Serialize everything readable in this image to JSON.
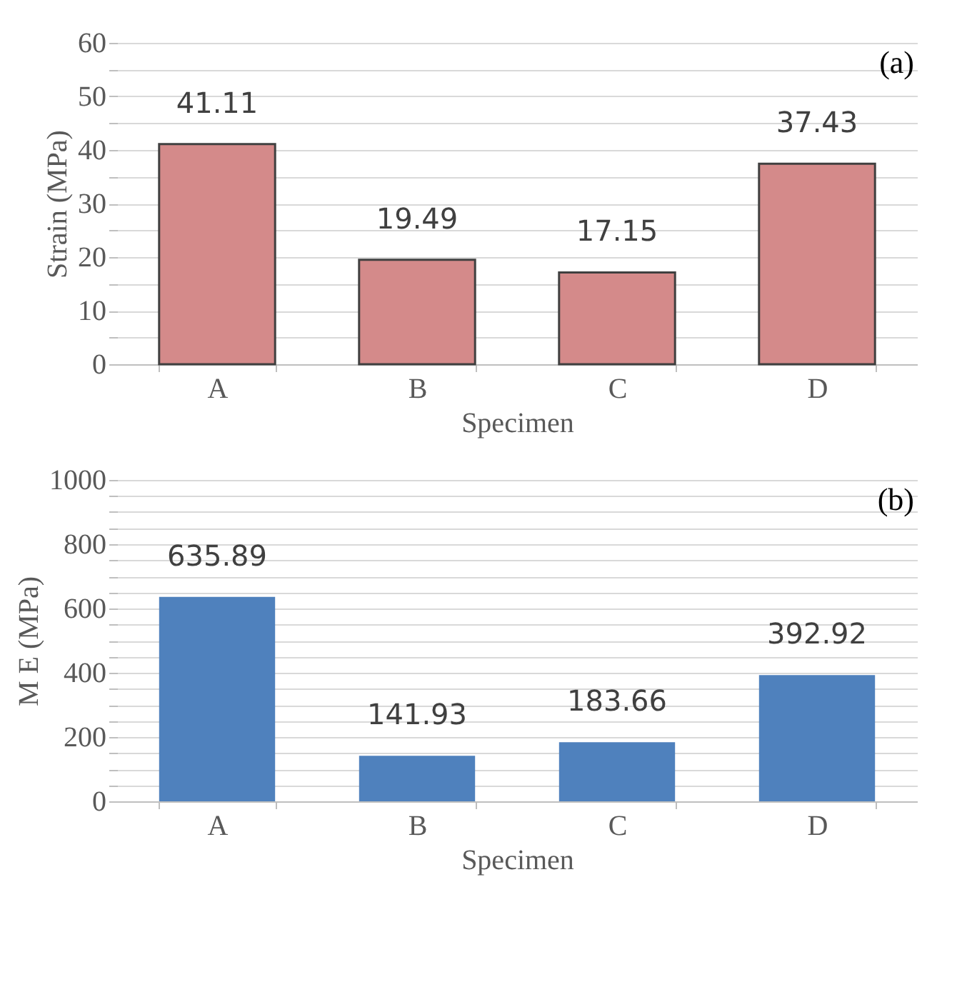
{
  "chart_data": [
    {
      "type": "bar",
      "categories": [
        "A",
        "B",
        "C",
        "D"
      ],
      "values": [
        41.11,
        19.49,
        17.15,
        37.43
      ],
      "color": "#d48a8a",
      "xlabel": "Specimen",
      "ylabel": "Strain (MPa)",
      "ylim": [
        0,
        60
      ],
      "yticks": [
        0,
        {
          "value": 5,
          "label": null
        },
        10,
        {
          "value": 15,
          "label": null
        },
        20,
        {
          "value": 25,
          "label": null
        },
        30,
        {
          "value": 35,
          "label": null
        },
        40,
        {
          "value": 45,
          "label": null
        },
        50,
        {
          "value": 55,
          "label": null
        },
        60
      ],
      "grid": true,
      "data_labels": true,
      "annotations": [
        "(a)"
      ]
    },
    {
      "type": "bar",
      "categories": [
        "A",
        "B",
        "C",
        "D"
      ],
      "values": [
        635.89,
        141.93,
        183.66,
        392.92
      ],
      "color": "#4f81bd",
      "xlabel": "Specimen",
      "ylabel": "M E (MPa)",
      "ylim": [
        0,
        1000
      ],
      "yticks": [
        0,
        {
          "value": 50,
          "label": null
        },
        {
          "value": 100,
          "label": null
        },
        {
          "value": 150,
          "label": null
        },
        200,
        {
          "value": 250,
          "label": null
        },
        {
          "value": 300,
          "label": null
        },
        {
          "value": 350,
          "label": null
        },
        400,
        {
          "value": 450,
          "label": null
        },
        {
          "value": 500,
          "label": null
        },
        {
          "value": 550,
          "label": null
        },
        600,
        {
          "value": 650,
          "label": null
        },
        {
          "value": 700,
          "label": null
        },
        {
          "value": 750,
          "label": null
        },
        800,
        {
          "value": 850,
          "label": null
        },
        {
          "value": 900,
          "label": null
        },
        {
          "value": 950,
          "label": null
        },
        1000
      ],
      "grid": true,
      "data_labels": true,
      "annotations": [
        "(b)"
      ]
    }
  ]
}
